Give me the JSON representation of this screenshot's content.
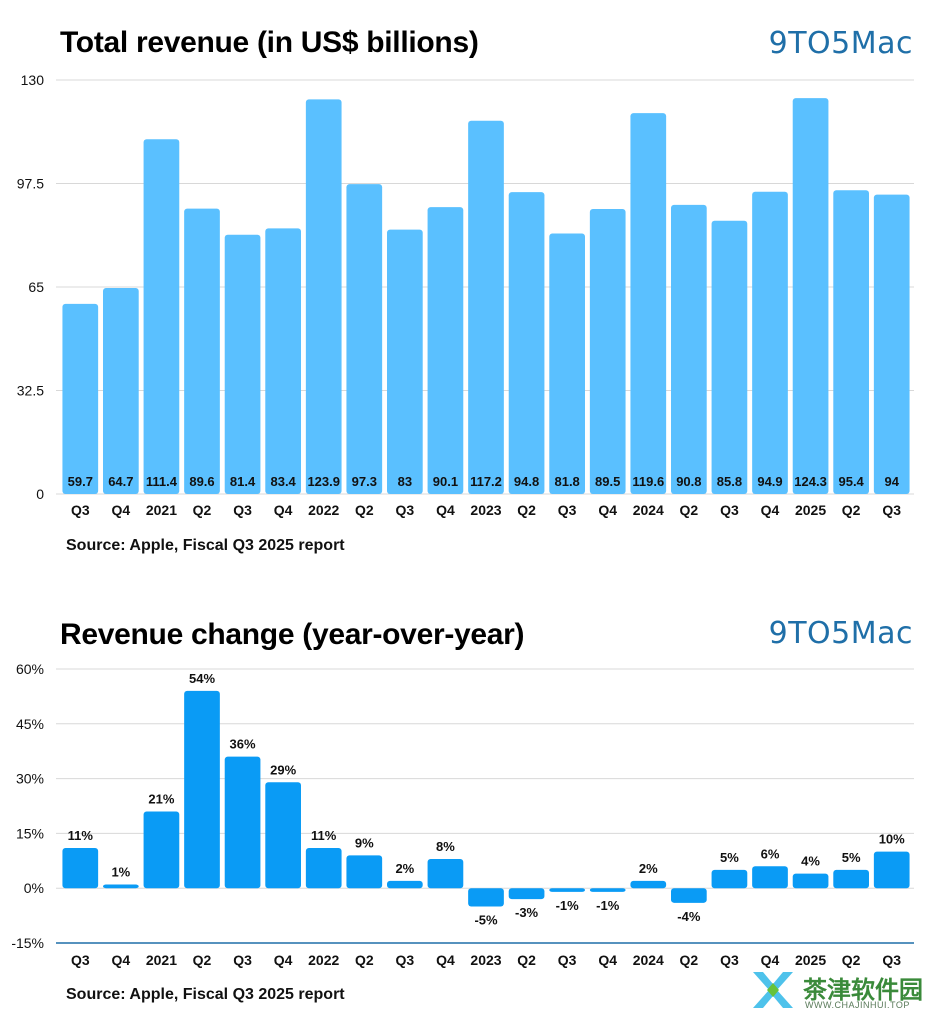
{
  "chart_data": [
    {
      "type": "bar",
      "title": "Total revenue (in US$ billions)",
      "brand": "9TO5Mac",
      "source": "Source: Apple, Fiscal Q3 2025 report",
      "categories": [
        "Q3",
        "Q4",
        "2021",
        "Q2",
        "Q3",
        "Q4",
        "2022",
        "Q2",
        "Q3",
        "Q4",
        "2023",
        "Q2",
        "Q3",
        "Q4",
        "2024",
        "Q2",
        "Q3",
        "Q4",
        "2025",
        "Q2",
        "Q3"
      ],
      "values": [
        59.7,
        64.7,
        111.4,
        89.6,
        81.4,
        83.4,
        123.9,
        97.3,
        83,
        90.1,
        117.2,
        94.8,
        81.8,
        89.5,
        119.6,
        90.8,
        85.8,
        94.9,
        124.3,
        95.4,
        94
      ],
      "value_labels": [
        "59.7",
        "64.7",
        "111.4",
        "89.6",
        "81.4",
        "83.4",
        "123.9",
        "97.3",
        "83",
        "90.1",
        "117.2",
        "94.8",
        "81.8",
        "89.5",
        "119.6",
        "90.8",
        "85.8",
        "94.9",
        "124.3",
        "95.4",
        "94"
      ],
      "yticks": [
        0,
        32.5,
        65,
        97.5,
        130
      ],
      "ytick_labels": [
        "0",
        "32.5",
        "65",
        "97.5",
        "130"
      ],
      "ylim": [
        0,
        130
      ],
      "grid": true,
      "bar_color": "#5ac0ff"
    },
    {
      "type": "bar",
      "title": "Revenue change (year-over-year)",
      "brand": "9TO5Mac",
      "source": "Source: Apple, Fiscal Q3 2025 report",
      "categories": [
        "Q3",
        "Q4",
        "2021",
        "Q2",
        "Q3",
        "Q4",
        "2022",
        "Q2",
        "Q3",
        "Q4",
        "2023",
        "Q2",
        "Q3",
        "Q4",
        "2024",
        "Q2",
        "Q3",
        "Q4",
        "2025",
        "Q2",
        "Q3"
      ],
      "values": [
        11,
        1,
        21,
        54,
        36,
        29,
        11,
        9,
        2,
        8,
        -5,
        -3,
        -1,
        -1,
        2,
        -4,
        5,
        6,
        4,
        5,
        10
      ],
      "value_labels": [
        "11%",
        "1%",
        "21%",
        "54%",
        "36%",
        "29%",
        "11%",
        "9%",
        "2%",
        "8%",
        "-5%",
        "-3%",
        "-1%",
        "-1%",
        "2%",
        "-4%",
        "5%",
        "6%",
        "4%",
        "5%",
        "10%"
      ],
      "yticks": [
        -15,
        0,
        15,
        30,
        45,
        60
      ],
      "ytick_labels": [
        "-15%",
        "0%",
        "15%",
        "30%",
        "45%",
        "60%"
      ],
      "ylim": [
        -15,
        60
      ],
      "grid": true,
      "bar_color": "#0a9bf5"
    }
  ],
  "watermark": {
    "text": "茶津软件园",
    "sub": "WWW.CHAJINHUI.TOP"
  }
}
